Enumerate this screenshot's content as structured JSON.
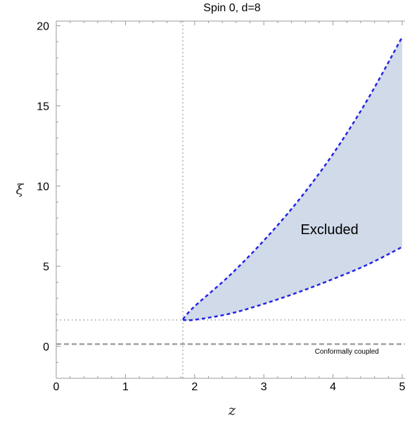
{
  "chart_data": {
    "type": "area",
    "title": "Spin 0, d=8",
    "xlabel": "z",
    "ylabel": "ξ",
    "xlim": [
      0,
      5
    ],
    "ylim": [
      -1.5,
      20.5
    ],
    "x_ticks": [
      "0",
      "1",
      "2",
      "3",
      "4",
      "5"
    ],
    "y_ticks": [
      "0",
      "5",
      "10",
      "15",
      "20"
    ],
    "grid": false,
    "colors": {
      "fill": "#d0dae9",
      "boundary": "#2323e6",
      "reference_lines": "#999999",
      "conformal_line": "#999999"
    },
    "excluded_region": {
      "upper_boundary": {
        "x": [
          1.83,
          2.0,
          2.5,
          3.0,
          3.5,
          4.0,
          4.5,
          5.0
        ],
        "y": [
          1.7,
          2.5,
          4.4,
          6.6,
          9.1,
          12.0,
          15.4,
          19.3
        ]
      },
      "lower_boundary": {
        "x": [
          1.83,
          2.0,
          2.5,
          3.0,
          3.5,
          4.0,
          4.5,
          5.0
        ],
        "y": [
          1.65,
          1.66,
          2.03,
          2.65,
          3.38,
          4.2,
          5.1,
          6.2
        ]
      }
    },
    "reference_lines": {
      "vertical_x": 1.83,
      "horizontal_y": 1.65,
      "conformal_y": 0.14
    },
    "annotations": {
      "excluded": {
        "text": "Excluded",
        "x": 3.95,
        "y": 7.0
      },
      "conformal": {
        "text": "Conformally coupled",
        "x": 4.2,
        "y": -0.45
      }
    }
  }
}
